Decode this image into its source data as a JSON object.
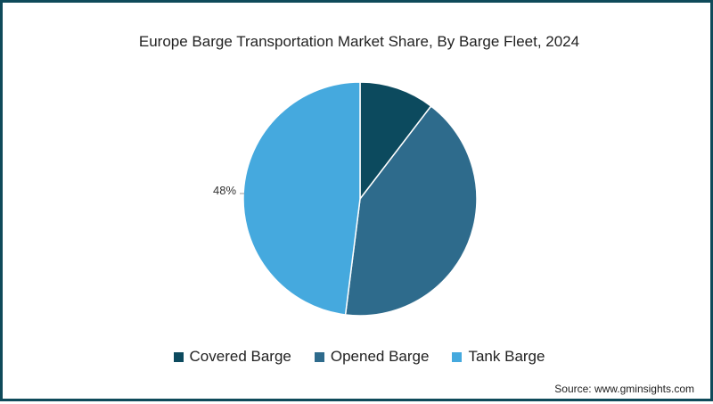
{
  "chart_data": {
    "type": "pie",
    "title": "Europe Barge Transportation Market Share, By Barge Fleet, 2024",
    "categories": [
      "Covered Barge",
      "Opened Barge",
      "Tank Barge"
    ],
    "values": [
      10.4,
      41.6,
      48
    ],
    "colors": [
      "#0c4a5e",
      "#2e6b8c",
      "#45a9de"
    ],
    "data_labels": [
      {
        "category": "Tank Barge",
        "text": "48%"
      }
    ],
    "legend_position": "bottom",
    "start_angle": "top, clockwise"
  },
  "labels": {
    "tank_pct": "48%"
  },
  "legend": [
    {
      "label": "Covered Barge",
      "color": "#0c4a5e"
    },
    {
      "label": "Opened Barge",
      "color": "#2e6b8c"
    },
    {
      "label": "Tank Barge",
      "color": "#45a9de"
    }
  ],
  "source": "Source: www.gminsights.com",
  "frame_color": "#0e4a5a"
}
